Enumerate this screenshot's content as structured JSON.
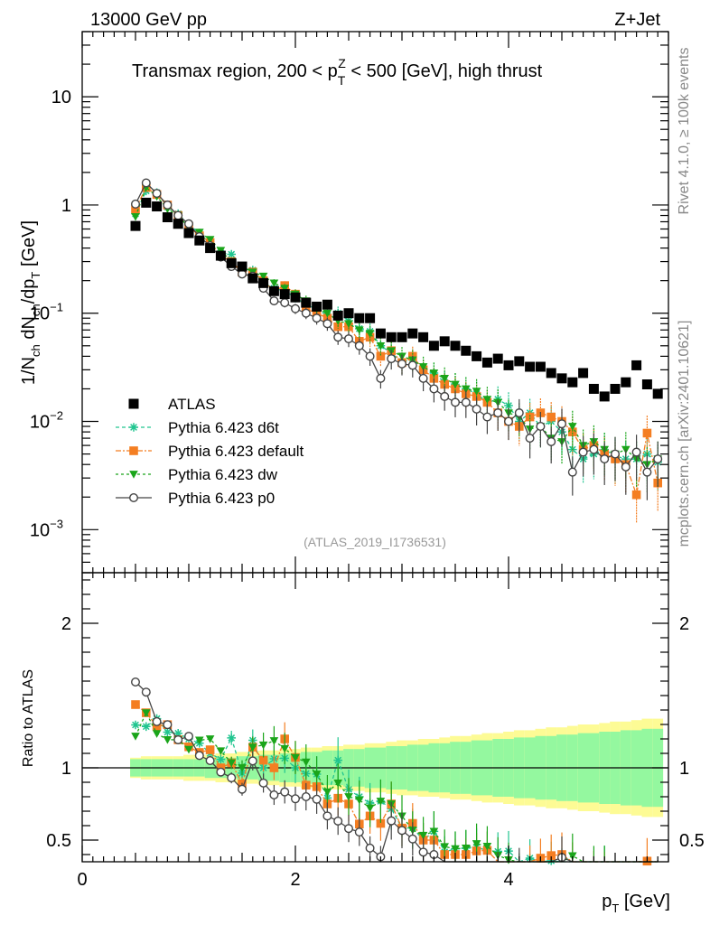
{
  "header": {
    "left": "13000 GeV pp",
    "right": "Z+Jet"
  },
  "side_labels": {
    "rivet": "Rivet 4.1.0, ≥ 100k events",
    "mcplots": "mcplots.cern.ch [arXiv:2401.10621]"
  },
  "chart_data": {
    "type": "scatter",
    "title": "Transmax region, 200 < p_T^Z < 500 [GeV], high thrust",
    "title_parts": {
      "pre": "Transmax region, 200 < p",
      "sub": "T",
      "sup": "Z",
      "post": " < 500 [GeV], high thrust"
    },
    "reference": "(ATLAS_2019_I1736531)",
    "xlabel": "p_T [GeV]",
    "ylabel": "1/N_ch dN_ch/dp_T [GeV]",
    "ratio_ylabel": "Ratio to ATLAS",
    "xlim": [
      0,
      5.5
    ],
    "ylim": [
      0.0004,
      40
    ],
    "ratio_ylim": [
      0.35,
      2.35
    ],
    "x_ticks": [
      "0",
      "2",
      "4"
    ],
    "y_ticks": [
      "10^-3",
      "10^-2",
      "10^-1",
      "1",
      "10"
    ],
    "ratio_ticks": [
      "0.5",
      "1",
      "2"
    ],
    "x": [
      0.5,
      0.6,
      0.7,
      0.8,
      0.9,
      1.0,
      1.1,
      1.2,
      1.3,
      1.4,
      1.5,
      1.6,
      1.7,
      1.8,
      1.9,
      2.0,
      2.1,
      2.2,
      2.3,
      2.4,
      2.5,
      2.6,
      2.7,
      2.8,
      2.9,
      3.0,
      3.1,
      3.2,
      3.3,
      3.4,
      3.5,
      3.6,
      3.7,
      3.8,
      3.9,
      4.0,
      4.1,
      4.2,
      4.3,
      4.4,
      4.5,
      4.6,
      4.7,
      4.8,
      4.9,
      5.0,
      5.1,
      5.2,
      5.3,
      5.4
    ],
    "band_inner": [
      0.06,
      0.06,
      0.06,
      0.06,
      0.06,
      0.06,
      0.06,
      0.07,
      0.07,
      0.07,
      0.08,
      0.08,
      0.09,
      0.09,
      0.1,
      0.1,
      0.11,
      0.11,
      0.12,
      0.12,
      0.13,
      0.13,
      0.14,
      0.14,
      0.15,
      0.15,
      0.16,
      0.16,
      0.17,
      0.17,
      0.18,
      0.18,
      0.19,
      0.19,
      0.2,
      0.2,
      0.21,
      0.21,
      0.22,
      0.22,
      0.23,
      0.23,
      0.24,
      0.24,
      0.25,
      0.25,
      0.26,
      0.26,
      0.27,
      0.27
    ],
    "band_outer": [
      0.07,
      0.08,
      0.08,
      0.08,
      0.08,
      0.09,
      0.09,
      0.09,
      0.1,
      0.1,
      0.11,
      0.11,
      0.12,
      0.12,
      0.13,
      0.13,
      0.14,
      0.14,
      0.15,
      0.15,
      0.16,
      0.16,
      0.17,
      0.17,
      0.18,
      0.19,
      0.19,
      0.2,
      0.2,
      0.21,
      0.22,
      0.22,
      0.23,
      0.24,
      0.24,
      0.25,
      0.26,
      0.26,
      0.27,
      0.28,
      0.28,
      0.29,
      0.3,
      0.3,
      0.31,
      0.32,
      0.32,
      0.33,
      0.34,
      0.34
    ],
    "series": [
      {
        "name": "ATLAS",
        "color": "#000000",
        "marker": "square",
        "line": "none",
        "values": [
          0.64,
          1.05,
          0.97,
          0.77,
          0.67,
          0.55,
          0.47,
          0.4,
          0.34,
          0.29,
          0.27,
          0.21,
          0.19,
          0.16,
          0.15,
          0.14,
          0.125,
          0.115,
          0.12,
          0.095,
          0.1,
          0.09,
          0.09,
          0.065,
          0.06,
          0.06,
          0.065,
          0.06,
          0.05,
          0.055,
          0.05,
          0.045,
          0.04,
          0.035,
          0.038,
          0.033,
          0.036,
          0.032,
          0.032,
          0.028,
          0.025,
          0.023,
          0.028,
          0.02,
          0.017,
          0.02,
          0.023,
          0.033,
          0.022,
          0.018
        ]
      },
      {
        "name": "Pythia 6.423 d6t",
        "color": "#20c58f",
        "marker": "star",
        "line": "4,3",
        "values": [
          0.83,
          1.35,
          1.3,
          0.96,
          0.83,
          0.66,
          0.55,
          0.44,
          0.36,
          0.35,
          0.26,
          0.25,
          0.19,
          0.17,
          0.16,
          0.14,
          0.12,
          0.11,
          0.095,
          0.1,
          0.085,
          0.072,
          0.068,
          0.05,
          0.043,
          0.035,
          0.038,
          0.03,
          0.028,
          0.023,
          0.022,
          0.02,
          0.018,
          0.015,
          0.016,
          0.014,
          0.01,
          0.012,
          0.009,
          0.01,
          0.008,
          0.0055,
          0.0045,
          0.005,
          0.0055,
          0.0048,
          0.0045,
          0.0045,
          0.005,
          0.0042
        ]
      },
      {
        "name": "Pythia 6.423 default",
        "color": "#f47e22",
        "marker": "square",
        "line": "6,2,2,2",
        "values": [
          0.92,
          1.45,
          1.25,
          1.0,
          0.8,
          0.63,
          0.52,
          0.45,
          0.34,
          0.3,
          0.24,
          0.24,
          0.2,
          0.16,
          0.18,
          0.15,
          0.11,
          0.1,
          0.09,
          0.075,
          0.075,
          0.055,
          0.06,
          0.04,
          0.045,
          0.035,
          0.04,
          0.03,
          0.025,
          0.022,
          0.02,
          0.018,
          0.017,
          0.015,
          0.012,
          0.01,
          0.009,
          0.011,
          0.012,
          0.011,
          0.01,
          0.008,
          0.0055,
          0.006,
          0.005,
          0.0045,
          0.004,
          0.0021,
          0.0078,
          0.0027
        ]
      },
      {
        "name": "Pythia 6.423 dw",
        "color": "#1aa51a",
        "marker": "triangle-down",
        "line": "3,3",
        "values": [
          0.78,
          1.45,
          1.2,
          0.92,
          0.8,
          0.62,
          0.56,
          0.48,
          0.38,
          0.3,
          0.27,
          0.24,
          0.22,
          0.19,
          0.17,
          0.15,
          0.13,
          0.11,
          0.1,
          0.085,
          0.08,
          0.07,
          0.065,
          0.05,
          0.045,
          0.04,
          0.037,
          0.032,
          0.028,
          0.025,
          0.022,
          0.02,
          0.019,
          0.016,
          0.015,
          0.012,
          0.011,
          0.0085,
          0.009,
          0.007,
          0.0065,
          0.009,
          0.006,
          0.0065,
          0.0055,
          0.005,
          0.0055,
          0.0045,
          0.004,
          0.0045
        ]
      },
      {
        "name": "Pythia 6.423 p0",
        "color": "#444444",
        "marker": "circle-open",
        "line": "solid",
        "values": [
          1.02,
          1.6,
          1.28,
          1.0,
          0.8,
          0.67,
          0.51,
          0.42,
          0.33,
          0.27,
          0.23,
          0.22,
          0.17,
          0.13,
          0.125,
          0.11,
          0.1,
          0.09,
          0.08,
          0.06,
          0.058,
          0.05,
          0.04,
          0.025,
          0.038,
          0.034,
          0.033,
          0.025,
          0.02,
          0.017,
          0.015,
          0.015,
          0.013,
          0.011,
          0.012,
          0.01,
          0.012,
          0.007,
          0.009,
          0.0065,
          0.0095,
          0.0034,
          0.0052,
          0.0055,
          0.0045,
          0.005,
          0.0038,
          0.0052,
          0.0034,
          0.0045
        ]
      }
    ]
  }
}
